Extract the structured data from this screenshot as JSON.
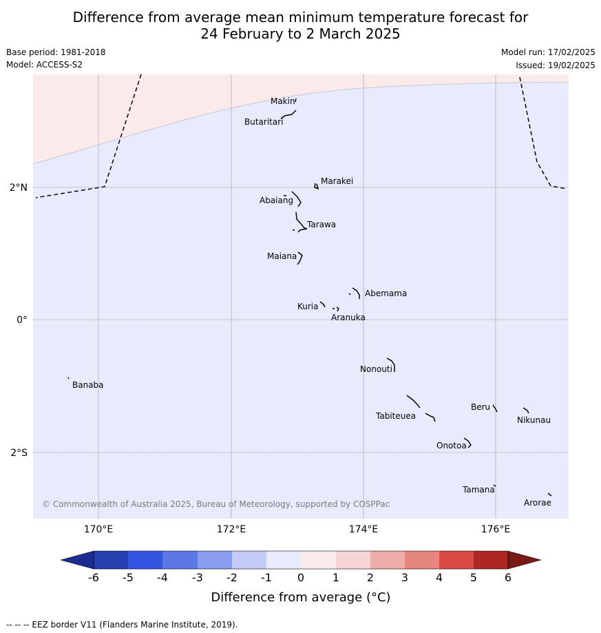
{
  "title_line1": "Difference from average mean minimum temperature forecast for",
  "title_line2": "24 February to 2 March 2025",
  "base_period": "Base period: 1981-2018",
  "model": "Model: ACCESS-S2",
  "model_run": "Model run: 17/02/2025",
  "issued": "Issued: 19/02/2025",
  "copyright": "© Commonwealth of Australia 2025, Bureau of Meteorology, supported by COSPPac",
  "lat_labels": [
    "2°N",
    "0°",
    "2°S"
  ],
  "lon_labels": [
    "170°E",
    "172°E",
    "174°E",
    "176°E"
  ],
  "places": {
    "makin": "Makin",
    "butaritari": "Butaritari",
    "marakei": "Marakei",
    "abaiang": "Abaiang",
    "tarawa": "Tarawa",
    "maiana": "Maiana",
    "abemama": "Abemama",
    "kuria": "Kuria",
    "aranuka": "Aranuka",
    "nonouti": "Nonouti",
    "banaba": "Banaba",
    "beru": "Beru",
    "nikunau": "Nikunau",
    "tabiteuea": "Tabiteuea",
    "onotoa": "Onotoa",
    "tamana": "Tamana",
    "arorae": "Arorae"
  },
  "colorbar": {
    "ticks": [
      "-6",
      "-5",
      "-4",
      "-3",
      "-2",
      "-1",
      "0",
      "1",
      "2",
      "3",
      "4",
      "5",
      "6"
    ],
    "colors": [
      "#1c2d8f",
      "#2440b0",
      "#3355e0",
      "#5b78e4",
      "#8a9df0",
      "#c3cbf6",
      "#e8ebfb",
      "#fbeaea",
      "#f5d5d4",
      "#eeada9",
      "#e5867f",
      "#d94c43",
      "#ad2823",
      "#7a1a17"
    ],
    "label": "Difference from average (°C)"
  },
  "map_colors": {
    "below_average_light": "#e8ebfb",
    "above_average_light": "#fbeaea"
  },
  "footer": "--  --  -- EEZ border V11 (Flanders Marine Institute, 2019)."
}
